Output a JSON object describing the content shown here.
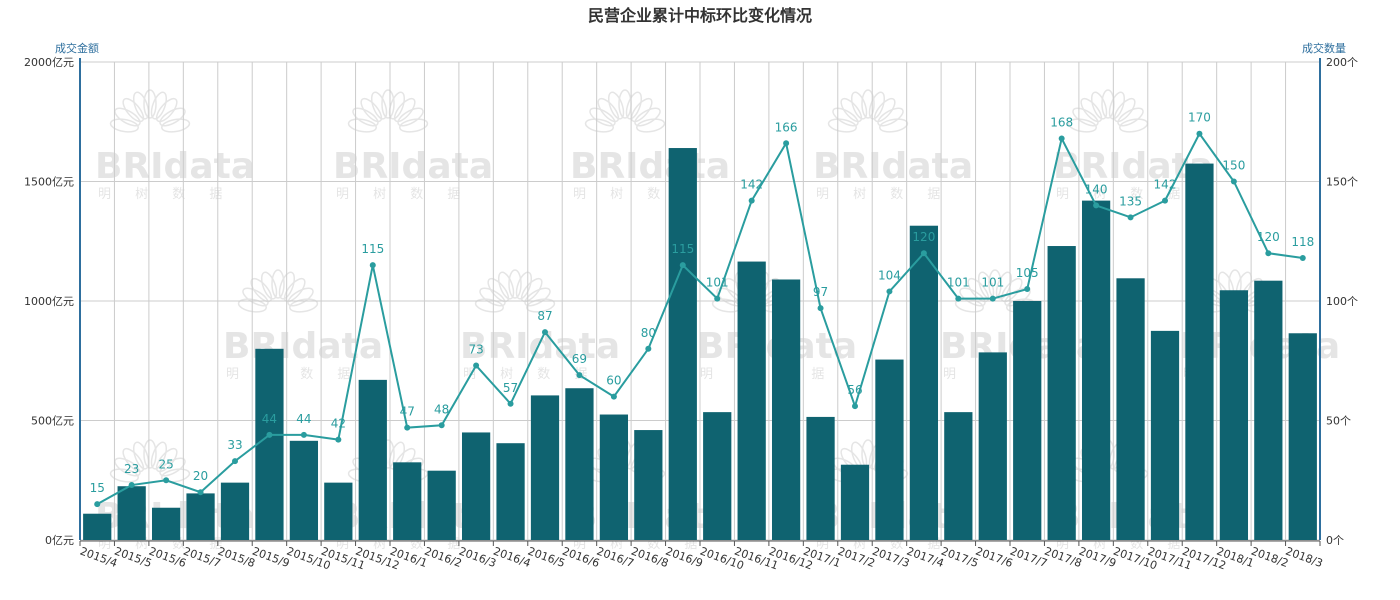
{
  "colors": {
    "bar": "#0f6370",
    "line": "#2a9d9f",
    "axis": "#2e6f9e",
    "grid": "#cccccc",
    "watermark": "#d0d0d0"
  },
  "watermark": {
    "brand": "BRIdata",
    "chinese": "明 树 数 据"
  },
  "chart_data": {
    "type": "bar",
    "title": "民营企业累计中标环比变化情况",
    "y_left": {
      "name": "成交金额",
      "range": [
        0,
        2000
      ],
      "ticks": [
        "0亿元",
        "500亿元",
        "1000亿元",
        "1500亿元",
        "2000亿元"
      ]
    },
    "y_right": {
      "name": "成交数量",
      "range": [
        0,
        200
      ],
      "ticks": [
        "0个",
        "50个",
        "100个",
        "150个",
        "200个"
      ]
    },
    "grid": true,
    "categories": [
      "2015/4",
      "2015/5",
      "2015/6",
      "2015/7",
      "2015/8",
      "2015/9",
      "2015/10",
      "2015/11",
      "2015/12",
      "2016/1",
      "2016/2",
      "2016/3",
      "2016/4",
      "2016/5",
      "2016/6",
      "2016/7",
      "2016/8",
      "2016/9",
      "2016/10",
      "2016/11",
      "2016/12",
      "2017/1",
      "2017/2",
      "2017/3",
      "2017/4",
      "2017/5",
      "2017/6",
      "2017/7",
      "2017/8",
      "2017/9",
      "2017/10",
      "2017/11",
      "2017/12",
      "2018/1",
      "2018/2",
      "2018/3"
    ],
    "series": [
      {
        "type": "bar",
        "axis": "left",
        "values": [
          110,
          225,
          135,
          195,
          240,
          800,
          415,
          240,
          670,
          325,
          290,
          450,
          405,
          605,
          635,
          525,
          460,
          1640,
          535,
          1165,
          1090,
          515,
          315,
          755,
          1315,
          535,
          785,
          1000,
          1230,
          1420,
          1095,
          875,
          1575,
          1045,
          1085,
          865
        ]
      },
      {
        "type": "line",
        "axis": "right",
        "values": [
          15,
          23,
          25,
          20,
          33,
          44,
          44,
          42,
          115,
          47,
          48,
          73,
          57,
          87,
          69,
          60,
          80,
          115,
          101,
          142,
          166,
          97,
          56,
          104,
          120,
          101,
          101,
          105,
          168,
          140,
          135,
          142,
          170,
          150,
          120,
          118
        ],
        "labels": [
          "15",
          "23",
          "25",
          "20",
          "33",
          "44",
          "44",
          "42",
          "115",
          "47",
          "48",
          "73",
          "57",
          "87",
          "69",
          "60",
          "80",
          "115",
          "101",
          "142",
          "166",
          "97",
          "56",
          "104",
          "120",
          "101",
          "101",
          "105",
          "168",
          "140",
          "135",
          "142",
          "170",
          "150",
          "120",
          "118"
        ]
      }
    ]
  }
}
